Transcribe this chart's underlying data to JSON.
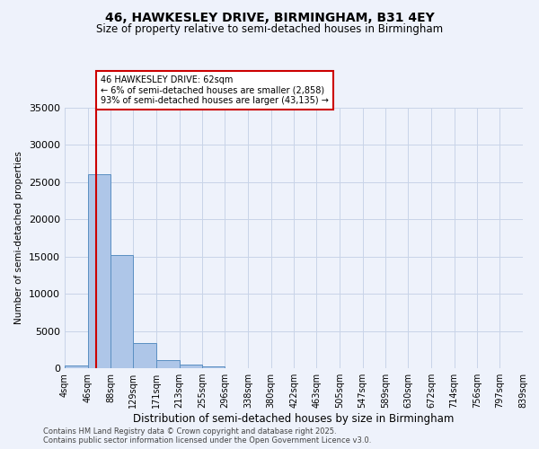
{
  "title1": "46, HAWKESLEY DRIVE, BIRMINGHAM, B31 4EY",
  "title2": "Size of property relative to semi-detached houses in Birmingham",
  "xlabel": "Distribution of semi-detached houses by size in Birmingham",
  "ylabel": "Number of semi-detached properties",
  "footer1": "Contains HM Land Registry data © Crown copyright and database right 2025.",
  "footer2": "Contains public sector information licensed under the Open Government Licence v3.0.",
  "annotation_title": "46 HAWKESLEY DRIVE: 62sqm",
  "annotation_line1": "← 6% of semi-detached houses are smaller (2,858)",
  "annotation_line2": "93% of semi-detached houses are larger (43,135) →",
  "property_size": 62,
  "bar_edges": [
    4,
    46,
    88,
    129,
    171,
    213,
    255,
    296,
    338,
    380,
    422,
    463,
    505,
    547,
    589,
    630,
    672,
    714,
    756,
    797,
    839
  ],
  "bar_values": [
    400,
    26100,
    15150,
    3350,
    1050,
    500,
    300,
    0,
    0,
    0,
    0,
    0,
    0,
    0,
    0,
    0,
    0,
    0,
    0,
    0
  ],
  "bar_color": "#aec6e8",
  "bar_edge_color": "#5a8fc2",
  "line_color": "#cc0000",
  "ylim": [
    0,
    35000
  ],
  "yticks": [
    0,
    5000,
    10000,
    15000,
    20000,
    25000,
    30000,
    35000
  ],
  "bg_color": "#eef2fb",
  "grid_color": "#c8d4e8",
  "annotation_box_color": "#cc0000"
}
